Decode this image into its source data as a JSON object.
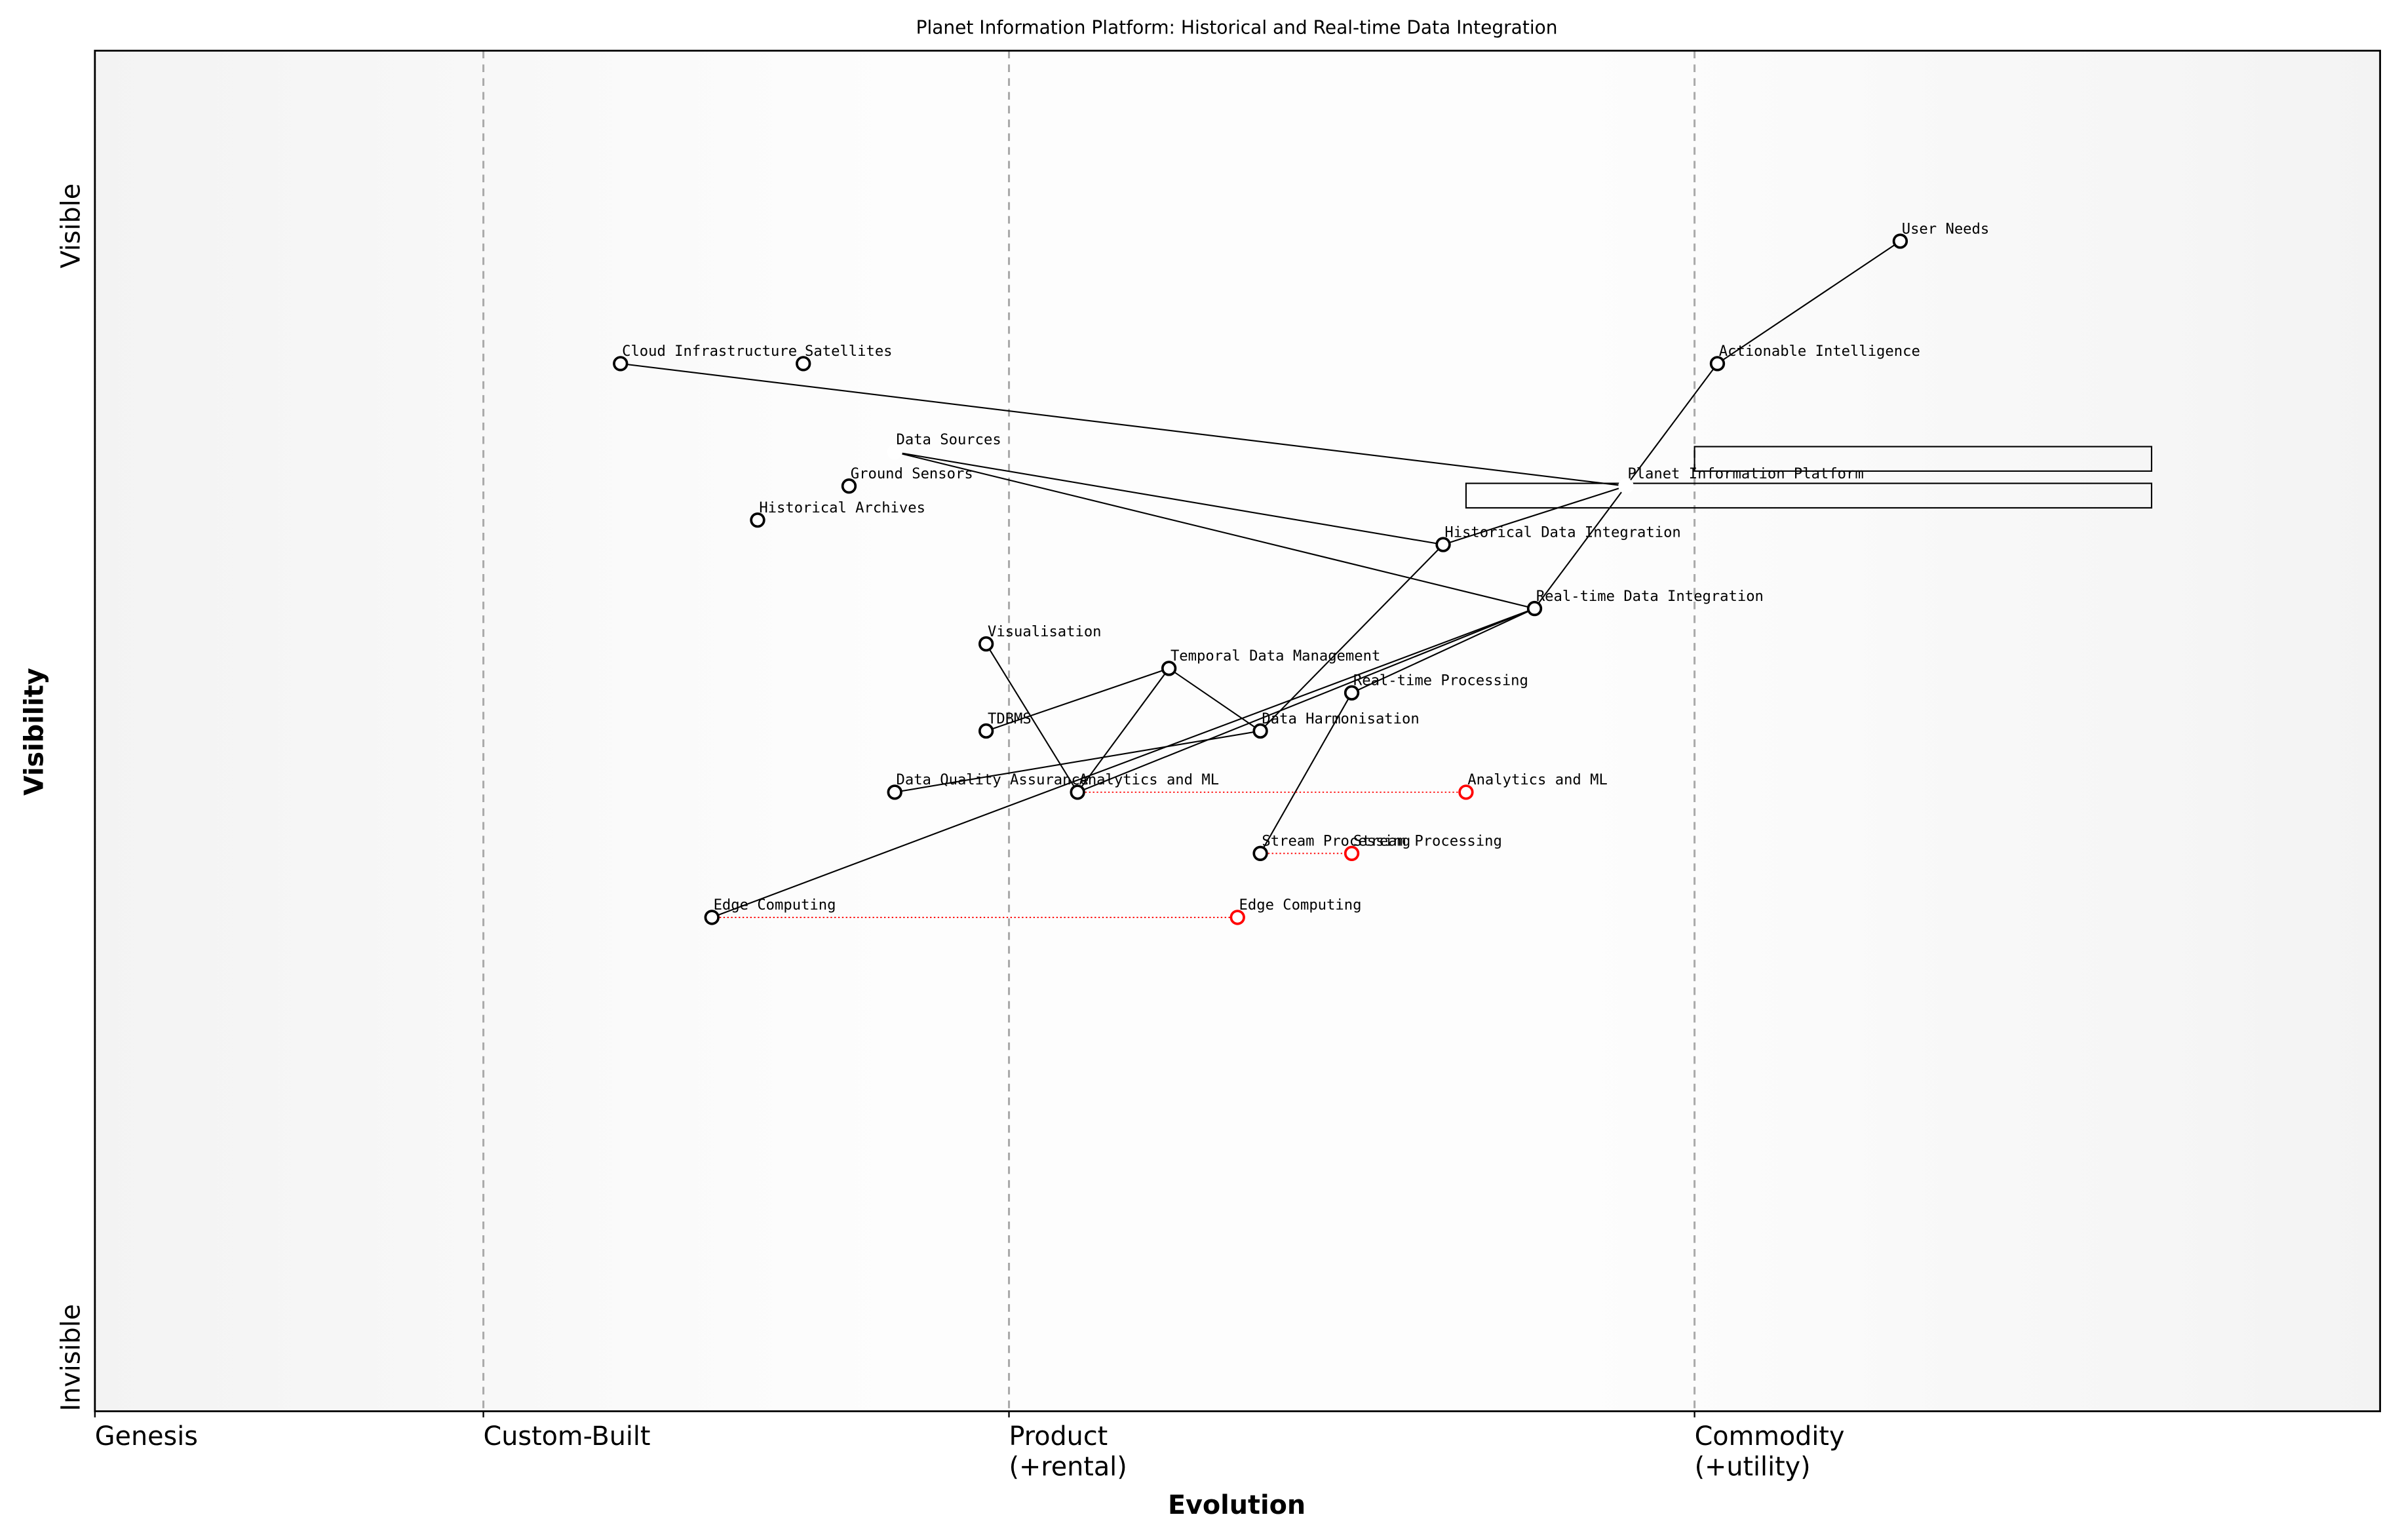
{
  "chart_data": {
    "type": "wardley",
    "title": "Planet Information Platform: Historical and Real-time Data Integration",
    "xlabel": "Evolution",
    "ylabel": "Visibility",
    "xlim": [
      0,
      1
    ],
    "ylim": [
      0,
      1
    ],
    "xticks": [
      {
        "value": 0,
        "label": "Genesis"
      },
      {
        "value": 0.17,
        "label": "Custom-Built"
      },
      {
        "value": 0.4,
        "label": "Product\n(+rental)"
      },
      {
        "value": 0.7,
        "label": "Commodity\n(+utility)"
      }
    ],
    "yticks": [
      {
        "value": 0,
        "label": "Invisible"
      },
      {
        "value": 0.84,
        "label": "Visible"
      }
    ],
    "components": [
      {
        "name": "User Needs",
        "evolution": 0.79,
        "visibility": 0.86
      },
      {
        "name": "Actionable Intelligence",
        "evolution": 0.71,
        "visibility": 0.77
      },
      {
        "name": "Planet Information Platform",
        "evolution": 0.67,
        "visibility": 0.68,
        "marker": "none"
      },
      {
        "name": "Cloud Infrastructure",
        "evolution": 0.23,
        "visibility": 0.77
      },
      {
        "name": "Satellites",
        "evolution": 0.31,
        "visibility": 0.77
      },
      {
        "name": "Data Sources",
        "evolution": 0.35,
        "visibility": 0.705,
        "marker": "none"
      },
      {
        "name": "Ground Sensors",
        "evolution": 0.33,
        "visibility": 0.68
      },
      {
        "name": "Historical Archives",
        "evolution": 0.29,
        "visibility": 0.655
      },
      {
        "name": "Historical Data Integration",
        "evolution": 0.59,
        "visibility": 0.637
      },
      {
        "name": "Real-time Data Integration",
        "evolution": 0.63,
        "visibility": 0.59
      },
      {
        "name": "Visualisation",
        "evolution": 0.39,
        "visibility": 0.564
      },
      {
        "name": "Temporal Data Management",
        "evolution": 0.47,
        "visibility": 0.546
      },
      {
        "name": "Real-time Processing",
        "evolution": 0.55,
        "visibility": 0.528
      },
      {
        "name": "TDBMS",
        "evolution": 0.39,
        "visibility": 0.5
      },
      {
        "name": "Data Harmonisation",
        "evolution": 0.51,
        "visibility": 0.5
      },
      {
        "name": "Data Quality Assurance",
        "evolution": 0.35,
        "visibility": 0.455
      },
      {
        "name": "Analytics and ML",
        "evolution": 0.43,
        "visibility": 0.455
      },
      {
        "name": "Stream Processing",
        "evolution": 0.51,
        "visibility": 0.41
      },
      {
        "name": "Edge Computing",
        "evolution": 0.27,
        "visibility": 0.363
      }
    ],
    "links": [
      [
        "User Needs",
        "Actionable Intelligence"
      ],
      [
        "Actionable Intelligence",
        "Planet Information Platform"
      ],
      [
        "Planet Information Platform",
        "Real-time Data Integration"
      ],
      [
        "Planet Information Platform",
        "Cloud Infrastructure"
      ],
      [
        "Planet Information Platform",
        "Historical Data Integration"
      ],
      [
        "Data Sources",
        "Historical Data Integration"
      ],
      [
        "Data Sources",
        "Real-time Data Integration"
      ],
      [
        "Historical Data Integration",
        "Data Harmonisation"
      ],
      [
        "Real-time Data Integration",
        "Real-time Processing"
      ],
      [
        "Real-time Data Integration",
        "Edge Computing"
      ],
      [
        "Real-time Data Integration",
        "Analytics and ML"
      ],
      [
        "Real-time Processing",
        "Stream Processing"
      ],
      [
        "Visualisation",
        "Analytics and ML"
      ],
      [
        "Temporal Data Management",
        "Analytics and ML"
      ],
      [
        "Temporal Data Management",
        "TDBMS"
      ],
      [
        "Temporal Data Management",
        "Data Harmonisation"
      ],
      [
        "Data Harmonisation",
        "Data Quality Assurance"
      ]
    ],
    "evolutions": [
      {
        "name": "Analytics and ML",
        "from": 0.43,
        "to": 0.6,
        "visibility": 0.455
      },
      {
        "name": "Stream Processing",
        "from": 0.51,
        "to": 0.55,
        "visibility": 0.41
      },
      {
        "name": "Edge Computing",
        "from": 0.27,
        "to": 0.5,
        "visibility": 0.363
      }
    ],
    "pipelines": [
      {
        "visibility": 0.7,
        "xlim": [
          0.7,
          0.9
        ]
      },
      {
        "visibility": 0.673,
        "xlim": [
          0.6,
          0.9
        ]
      }
    ]
  }
}
